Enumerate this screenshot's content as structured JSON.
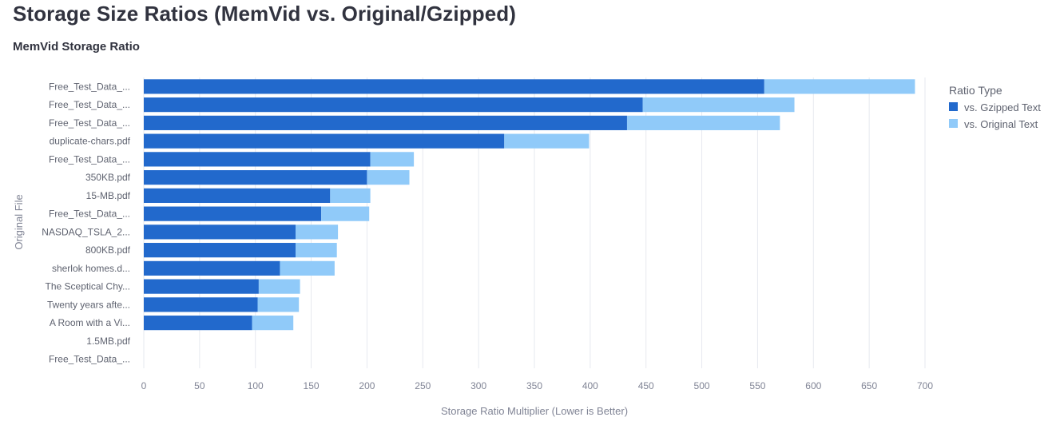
{
  "page": {
    "title": "Storage Size Ratios (MemVid vs. Original/Gzipped)",
    "chart_heading": "MemVid Storage Ratio"
  },
  "colors": {
    "gzipped": "#2269cc",
    "original": "#90caf9",
    "grid": "#e6e9ef",
    "text": "#31333f"
  },
  "chart_data": {
    "type": "bar",
    "orientation": "horizontal",
    "stacked": true,
    "title": "MemVid Storage Ratio",
    "xlabel": "Storage Ratio Multiplier (Lower is Better)",
    "ylabel": "Original File",
    "xlim": [
      0,
      700
    ],
    "xticks": [
      0,
      50,
      100,
      150,
      200,
      250,
      300,
      350,
      400,
      450,
      500,
      550,
      600,
      650,
      700
    ],
    "grid": true,
    "legend": {
      "title": "Ratio Type",
      "placement": "right"
    },
    "categories": [
      "Free_Test_Data_...",
      "Free_Test_Data_...",
      "Free_Test_Data_...",
      "duplicate-chars.pdf",
      "Free_Test_Data_...",
      "350KB.pdf",
      "15-MB.pdf",
      "Free_Test_Data_...",
      "NASDAQ_TSLA_2...",
      "800KB.pdf",
      "sherlok homes.d...",
      "The Sceptical Chy...",
      "Twenty years afte...",
      "A Room with a Vi...",
      "1.5MB.pdf",
      "Free_Test_Data_..."
    ],
    "series": [
      {
        "name": "vs. Gzipped Text",
        "values": [
          556,
          447,
          433,
          323,
          203,
          200,
          167,
          159,
          136,
          136,
          122,
          103,
          102,
          97,
          0,
          0
        ]
      },
      {
        "name": "vs. Original Text",
        "values": [
          135,
          136,
          137,
          76,
          39,
          38,
          36,
          43,
          38,
          37,
          49,
          37,
          37,
          37,
          0,
          0
        ]
      }
    ]
  }
}
